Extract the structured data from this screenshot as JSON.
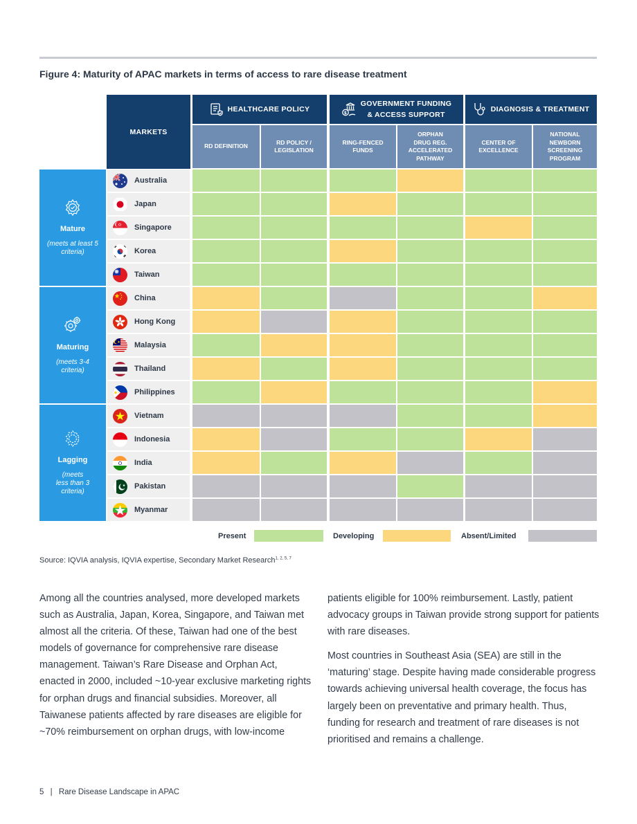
{
  "figure_title": "Figure 4: Maturity of APAC markets in terms of access to rare disease treatment",
  "table": {
    "markets_label": "MARKETS",
    "groups": [
      {
        "label_lines": [
          "HEALTHCARE POLICY"
        ],
        "icon": "policy-document-icon"
      },
      {
        "label_lines": [
          "GOVERNMENT FUNDING",
          "& ACCESS SUPPORT"
        ],
        "icon": "government-funding-icon"
      },
      {
        "label_lines": [
          "DIAGNOSIS & TREATMENT"
        ],
        "icon": "stethoscope-icon"
      }
    ],
    "criteria": [
      [
        "RD DEFINITION"
      ],
      [
        "RD POLICY /",
        "LEGISLATION"
      ],
      [
        "RING-FENCED",
        "FUNDS"
      ],
      [
        "ORPHAN",
        "DRUG REG.",
        "ACCELERATED",
        "PATHWAY"
      ],
      [
        "CENTER OF",
        "EXCELLENCE"
      ],
      [
        "NATIONAL",
        "NEWBORN",
        "SCREENING",
        "PROGRAM"
      ]
    ],
    "tiers": [
      {
        "name": "Mature",
        "desc_lines": [
          "(meets at least 5",
          "criteria)"
        ],
        "icon": "gear-check-icon",
        "countries": 5
      },
      {
        "name": "Maturing",
        "desc_lines": [
          "(meets 3-4",
          "criteria)"
        ],
        "icon": "gears-icon",
        "countries": 5
      },
      {
        "name": "Lagging",
        "desc_lines": [
          "(meets",
          "less than 3",
          "criteria)"
        ],
        "icon": "gear-dashed-icon",
        "countries": 5
      }
    ],
    "countries": [
      {
        "name": "Australia",
        "flag": "australia-flag-icon",
        "status": [
          "present",
          "present",
          "present",
          "developing",
          "present",
          "present"
        ]
      },
      {
        "name": "Japan",
        "flag": "japan-flag-icon",
        "status": [
          "present",
          "present",
          "developing",
          "present",
          "present",
          "present"
        ]
      },
      {
        "name": "Singapore",
        "flag": "singapore-flag-icon",
        "status": [
          "present",
          "present",
          "present",
          "present",
          "developing",
          "present"
        ]
      },
      {
        "name": "Korea",
        "flag": "korea-flag-icon",
        "status": [
          "present",
          "present",
          "developing",
          "present",
          "present",
          "present"
        ]
      },
      {
        "name": "Taiwan",
        "flag": "taiwan-flag-icon",
        "status": [
          "present",
          "present",
          "present",
          "present",
          "present",
          "present"
        ]
      },
      {
        "name": "China",
        "flag": "china-flag-icon",
        "status": [
          "developing",
          "present",
          "absent",
          "present",
          "present",
          "developing"
        ]
      },
      {
        "name": "Hong Kong",
        "flag": "hong-kong-flag-icon",
        "status": [
          "developing",
          "absent",
          "developing",
          "present",
          "present",
          "present"
        ]
      },
      {
        "name": "Malaysia",
        "flag": "malaysia-flag-icon",
        "status": [
          "present",
          "developing",
          "developing",
          "present",
          "present",
          "present"
        ]
      },
      {
        "name": "Thailand",
        "flag": "thailand-flag-icon",
        "status": [
          "developing",
          "present",
          "developing",
          "present",
          "present",
          "present"
        ]
      },
      {
        "name": "Philippines",
        "flag": "philippines-flag-icon",
        "status": [
          "present",
          "developing",
          "present",
          "present",
          "present",
          "developing"
        ]
      },
      {
        "name": "Vietnam",
        "flag": "vietnam-flag-icon",
        "status": [
          "absent",
          "absent",
          "absent",
          "present",
          "present",
          "developing"
        ]
      },
      {
        "name": "Indonesia",
        "flag": "indonesia-flag-icon",
        "status": [
          "developing",
          "absent",
          "present",
          "present",
          "developing",
          "absent"
        ]
      },
      {
        "name": "India",
        "flag": "india-flag-icon",
        "status": [
          "developing",
          "present",
          "developing",
          "absent",
          "present",
          "absent"
        ]
      },
      {
        "name": "Pakistan",
        "flag": "pakistan-flag-icon",
        "status": [
          "absent",
          "absent",
          "absent",
          "present",
          "absent",
          "absent"
        ]
      },
      {
        "name": "Myanmar",
        "flag": "myanmar-flag-icon",
        "status": [
          "absent",
          "absent",
          "absent",
          "absent",
          "absent",
          "absent"
        ]
      }
    ]
  },
  "legend": [
    {
      "label": "Present",
      "key": "present",
      "color": "#bfe29a"
    },
    {
      "label": "Developing",
      "key": "developing",
      "color": "#fcd77e"
    },
    {
      "label": "Absent/Limited",
      "key": "absent",
      "color": "#c3c2c9"
    }
  ],
  "colors": {
    "header_dark": "#143f6c",
    "header_mid": "#6f8cb3",
    "tier_blue": "#2a9be3",
    "country_bg": "#efefef"
  },
  "source": {
    "text": "Source: IQVIA analysis, IQVIA expertise, Secondary Market Research",
    "refs": "1, 2, 5, 7"
  },
  "body": {
    "left": [
      "Among all the countries analysed, more developed markets such as Australia, Japan, Korea, Singapore, and Taiwan met almost all the criteria. Of these, Taiwan had one of the best models of governance for comprehensive rare disease management. Taiwan’s Rare Disease and Orphan Act, enacted in 2000, included ~10-year exclusive marketing rights for orphan drugs and financial subsidies. Moreover, all Taiwanese patients affected by rare diseases are eligible for ~70% reimbursement on orphan drugs, with low-income"
    ],
    "right": [
      "patients eligible for 100% reimbursement. Lastly, patient advocacy groups in Taiwan provide strong support for patients with rare diseases.",
      "Most countries in Southeast Asia (SEA) are still in the ‘maturing’ stage. Despite having made considerable progress towards achieving universal health coverage, the focus has largely been on preventative and primary health. Thus, funding for research and treatment of rare diseases is not prioritised and remains a challenge."
    ]
  },
  "footer": {
    "page": "5",
    "separator": "|",
    "title": "Rare Disease Landscape in APAC"
  }
}
